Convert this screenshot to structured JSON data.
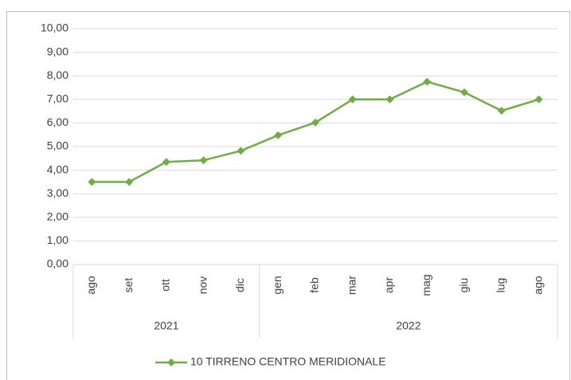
{
  "chart_data": {
    "type": "line",
    "groups": [
      {
        "name": "2021",
        "categories": [
          "ago",
          "set",
          "ott",
          "nov",
          "dic"
        ]
      },
      {
        "name": "2022",
        "categories": [
          "gen",
          "feb",
          "mar",
          "apr",
          "mag",
          "giu",
          "lug",
          "ago"
        ]
      }
    ],
    "series": [
      {
        "name": "10 TIRRENO CENTRO MERIDIONALE",
        "color": "#70ad47",
        "values": [
          3.5,
          3.5,
          4.35,
          4.42,
          4.82,
          5.48,
          6.02,
          7.0,
          7.0,
          7.75,
          7.3,
          6.52,
          7.0
        ]
      }
    ],
    "ylim": [
      0,
      10
    ],
    "yticks": [
      {
        "value": 0,
        "label": "0,00"
      },
      {
        "value": 1,
        "label": "1,00"
      },
      {
        "value": 2,
        "label": "2,00"
      },
      {
        "value": 3,
        "label": "3,00"
      },
      {
        "value": 4,
        "label": "4,00"
      },
      {
        "value": 5,
        "label": "5,00"
      },
      {
        "value": 6,
        "label": "6,00"
      },
      {
        "value": 7,
        "label": "7,00"
      },
      {
        "value": 8,
        "label": "8,00"
      },
      {
        "value": 9,
        "label": "9,00"
      },
      {
        "value": 10,
        "label": "10,00"
      }
    ],
    "grid": true,
    "legend": "bottom"
  }
}
